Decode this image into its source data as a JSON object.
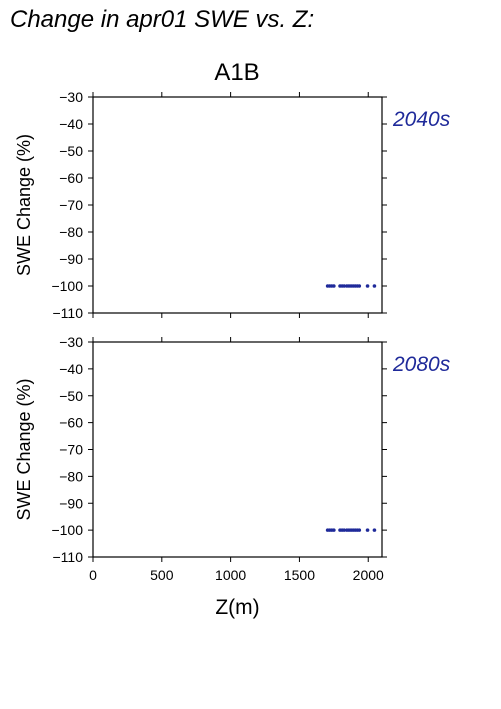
{
  "header": {
    "title": "Change in apr01 SWE vs. Z:",
    "scenario": "A1B"
  },
  "colors": {
    "points": "#1f2a9a",
    "period_label": "#1f2a9a",
    "axes": "#000000"
  },
  "chart_data": [
    {
      "type": "scatter",
      "period": "2040s",
      "ylabel": "SWE Change (%)",
      "xlabel": "",
      "xlim": [
        0,
        2100
      ],
      "ylim": [
        -110,
        -30
      ],
      "xticks": [
        0,
        500,
        1000,
        1500,
        2000
      ],
      "yticks": [
        -30,
        -40,
        -50,
        -60,
        -70,
        -80,
        -90,
        -100,
        -110
      ],
      "show_xtick_labels": false,
      "grid": false,
      "x": [
        1705,
        1720,
        1735,
        1750,
        1795,
        1810,
        1825,
        1845,
        1860,
        1875,
        1890,
        1905,
        1920,
        1935,
        1995,
        2045
      ],
      "y": [
        -100,
        -100,
        -100,
        -100,
        -100,
        -100,
        -100,
        -100,
        -100,
        -100,
        -100,
        -100,
        -100,
        -100,
        -100,
        -100
      ]
    },
    {
      "type": "scatter",
      "period": "2080s",
      "ylabel": "SWE Change (%)",
      "xlabel": "Z(m)",
      "xlim": [
        0,
        2100
      ],
      "ylim": [
        -110,
        -30
      ],
      "xticks": [
        0,
        500,
        1000,
        1500,
        2000
      ],
      "yticks": [
        -30,
        -40,
        -50,
        -60,
        -70,
        -80,
        -90,
        -100,
        -110
      ],
      "show_xtick_labels": true,
      "grid": false,
      "x": [
        1705,
        1720,
        1735,
        1750,
        1795,
        1810,
        1825,
        1845,
        1860,
        1875,
        1890,
        1905,
        1920,
        1935,
        1995,
        2045
      ],
      "y": [
        -100,
        -100,
        -100,
        -100,
        -100,
        -100,
        -100,
        -100,
        -100,
        -100,
        -100,
        -100,
        -100,
        -100,
        -100,
        -100
      ]
    }
  ]
}
